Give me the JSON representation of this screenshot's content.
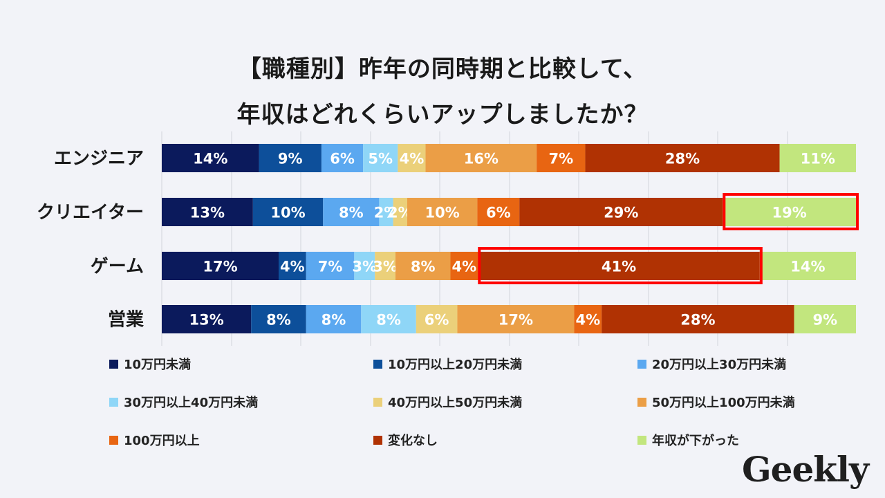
{
  "title_line1": "【職種別】昨年の同時期と比較して、",
  "title_line2": "年収はどれくらいアップしましたか？",
  "logo_text": "Geekly",
  "chart_data": {
    "type": "bar",
    "orientation": "horizontal",
    "stacked": true,
    "categories": [
      "エンジニア",
      "クリエイター",
      "ゲーム",
      "営業"
    ],
    "series": [
      {
        "name": "10万円未満",
        "color": "#0b1a5c",
        "values": [
          14,
          13,
          17,
          13
        ]
      },
      {
        "name": "10万円以上20万円未満",
        "color": "#0d4f9a",
        "values": [
          9,
          10,
          4,
          8
        ]
      },
      {
        "name": "20万円以上30万円未満",
        "color": "#5ba8f0",
        "values": [
          6,
          8,
          7,
          8
        ]
      },
      {
        "name": "30万円以上40万円未満",
        "color": "#8fd6f7",
        "values": [
          5,
          2,
          3,
          8
        ]
      },
      {
        "name": "40万円以上50万円未満",
        "color": "#ebd07a",
        "values": [
          4,
          2,
          3,
          6
        ]
      },
      {
        "name": "50万円以上100万円未満",
        "color": "#eb9e46",
        "values": [
          16,
          10,
          8,
          17
        ]
      },
      {
        "name": "100万円以上",
        "color": "#e86512",
        "values": [
          7,
          6,
          4,
          4
        ]
      },
      {
        "name": "変化なし",
        "color": "#b03203",
        "values": [
          28,
          29,
          41,
          28
        ]
      },
      {
        "name": "年収が下がった",
        "color": "#c2e67e",
        "values": [
          11,
          19,
          14,
          9
        ]
      }
    ],
    "value_suffix": "%",
    "highlights": [
      {
        "category": "クリエイター",
        "series": "年収が下がった",
        "color": "#ff0000"
      },
      {
        "category": "ゲーム",
        "series": "変化なし",
        "color": "#ff0000"
      }
    ],
    "grid": true,
    "legend_position": "bottom"
  }
}
